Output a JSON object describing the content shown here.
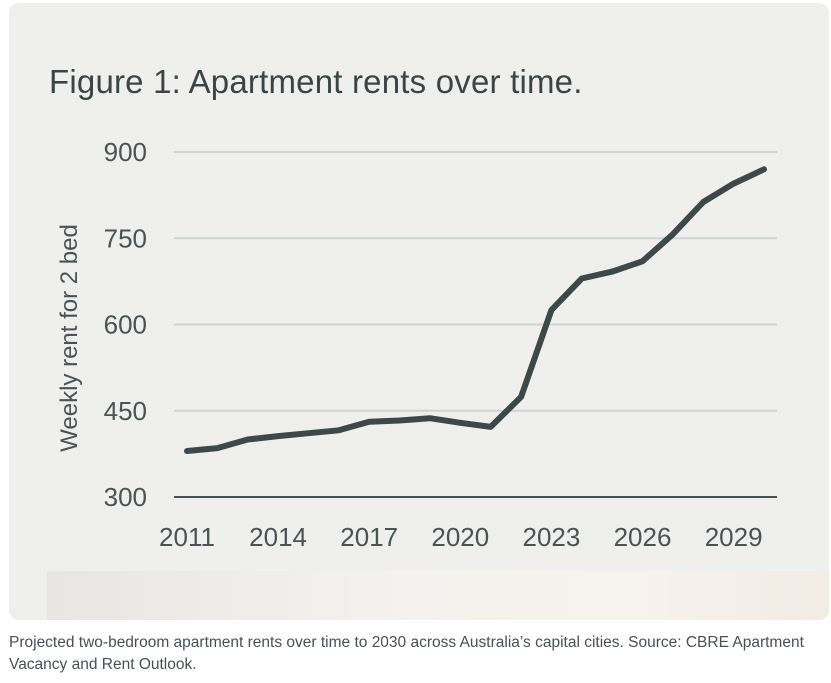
{
  "figure": {
    "title": "Figure 1:  Apartment rents over time."
  },
  "chart_data": {
    "type": "line",
    "title": "Figure 1:  Apartment rents over time.",
    "xlabel": "",
    "ylabel": "Weekly rent for 2 bed",
    "ylim": [
      300,
      900
    ],
    "yticks": [
      300,
      450,
      600,
      750,
      900
    ],
    "xlim": [
      2011,
      2030
    ],
    "xticks": [
      2011,
      2014,
      2017,
      2020,
      2023,
      2026,
      2029
    ],
    "grid": true,
    "legend": "none",
    "series": [
      {
        "name": "Weekly rent for 2 bed",
        "color": "#3e4849",
        "x": [
          2011,
          2012,
          2013,
          2014,
          2015,
          2016,
          2017,
          2018,
          2019,
          2020,
          2021,
          2022,
          2023,
          2024,
          2025,
          2026,
          2027,
          2028,
          2029,
          2030
        ],
        "values": [
          380,
          385,
          400,
          406,
          411,
          416,
          431,
          433,
          437,
          429,
          422,
          474,
          625,
          680,
          692,
          710,
          757,
          813,
          845,
          870
        ]
      }
    ]
  },
  "caption": "Projected two-bedroom apartment rents over time to 2030 across Australia’s capital cities. Source: CBRE Apartment Vacancy and Rent Outlook."
}
